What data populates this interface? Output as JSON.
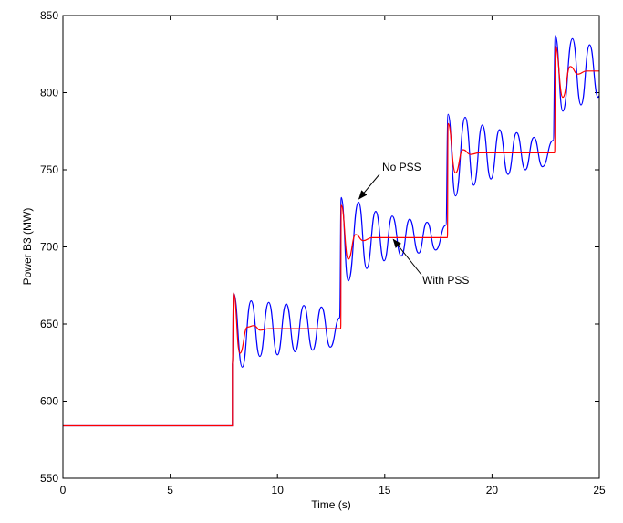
{
  "chart_data": {
    "type": "line",
    "title": "",
    "xlabel": "Time (s)",
    "ylabel": "Power B3 (MW)",
    "xlim": [
      0,
      25
    ],
    "ylim": [
      550,
      850
    ],
    "xticks": [
      0,
      5,
      10,
      15,
      20,
      25
    ],
    "yticks": [
      550,
      600,
      650,
      700,
      750,
      800,
      850
    ],
    "grid": false,
    "series": [
      {
        "color": "#0000ff",
        "points": [
          [
            0,
            584
          ],
          [
            7.9,
            584
          ],
          [
            7.9,
            624
          ],
          [
            7.95,
            670
          ],
          [
            8.36,
            622
          ],
          [
            8.77,
            665
          ],
          [
            9.18,
            629
          ],
          [
            9.59,
            664
          ],
          [
            10.0,
            630
          ],
          [
            10.41,
            663
          ],
          [
            10.82,
            632
          ],
          [
            11.23,
            662
          ],
          [
            11.64,
            633
          ],
          [
            12.05,
            661
          ],
          [
            12.46,
            635
          ],
          [
            12.9,
            654
          ],
          [
            12.97,
            732
          ],
          [
            13.3,
            678
          ],
          [
            13.78,
            729
          ],
          [
            14.16,
            686
          ],
          [
            14.58,
            723
          ],
          [
            14.97,
            691
          ],
          [
            15.35,
            720
          ],
          [
            15.77,
            694
          ],
          [
            16.16,
            718
          ],
          [
            16.58,
            696
          ],
          [
            16.97,
            716
          ],
          [
            17.37,
            698
          ],
          [
            17.85,
            714
          ],
          [
            17.95,
            786
          ],
          [
            18.3,
            733
          ],
          [
            18.75,
            784
          ],
          [
            19.15,
            740
          ],
          [
            19.55,
            779
          ],
          [
            19.95,
            744
          ],
          [
            20.35,
            776
          ],
          [
            20.75,
            747
          ],
          [
            21.15,
            774
          ],
          [
            21.55,
            750
          ],
          [
            21.95,
            771
          ],
          [
            22.35,
            752
          ],
          [
            22.85,
            769
          ],
          [
            22.95,
            837
          ],
          [
            23.3,
            788
          ],
          [
            23.75,
            835
          ],
          [
            24.15,
            792
          ],
          [
            24.55,
            831
          ],
          [
            24.95,
            797
          ],
          [
            25,
            798
          ]
        ]
      },
      {
        "color": "#ff0000",
        "points": [
          [
            0,
            584
          ],
          [
            7.9,
            584
          ],
          [
            7.9,
            624
          ],
          [
            7.95,
            670
          ],
          [
            8.25,
            631
          ],
          [
            8.6,
            648
          ],
          [
            8.9,
            649
          ],
          [
            9.2,
            646
          ],
          [
            9.6,
            647
          ],
          [
            12.95,
            647
          ],
          [
            12.97,
            727
          ],
          [
            13.3,
            692
          ],
          [
            13.65,
            708
          ],
          [
            14.0,
            704
          ],
          [
            14.4,
            706
          ],
          [
            17.92,
            706
          ],
          [
            17.95,
            780
          ],
          [
            18.3,
            748
          ],
          [
            18.65,
            763
          ],
          [
            19.0,
            760
          ],
          [
            19.4,
            761
          ],
          [
            22.92,
            761
          ],
          [
            22.95,
            830
          ],
          [
            23.3,
            797
          ],
          [
            23.65,
            817
          ],
          [
            24.0,
            812
          ],
          [
            24.4,
            814
          ],
          [
            25,
            814
          ]
        ]
      }
    ],
    "annotations": [
      {
        "text": "No PSS",
        "arrow_to": [
          13.8,
          730
        ]
      },
      {
        "text": "With PSS",
        "arrow_to": [
          15.4,
          706
        ]
      }
    ]
  }
}
